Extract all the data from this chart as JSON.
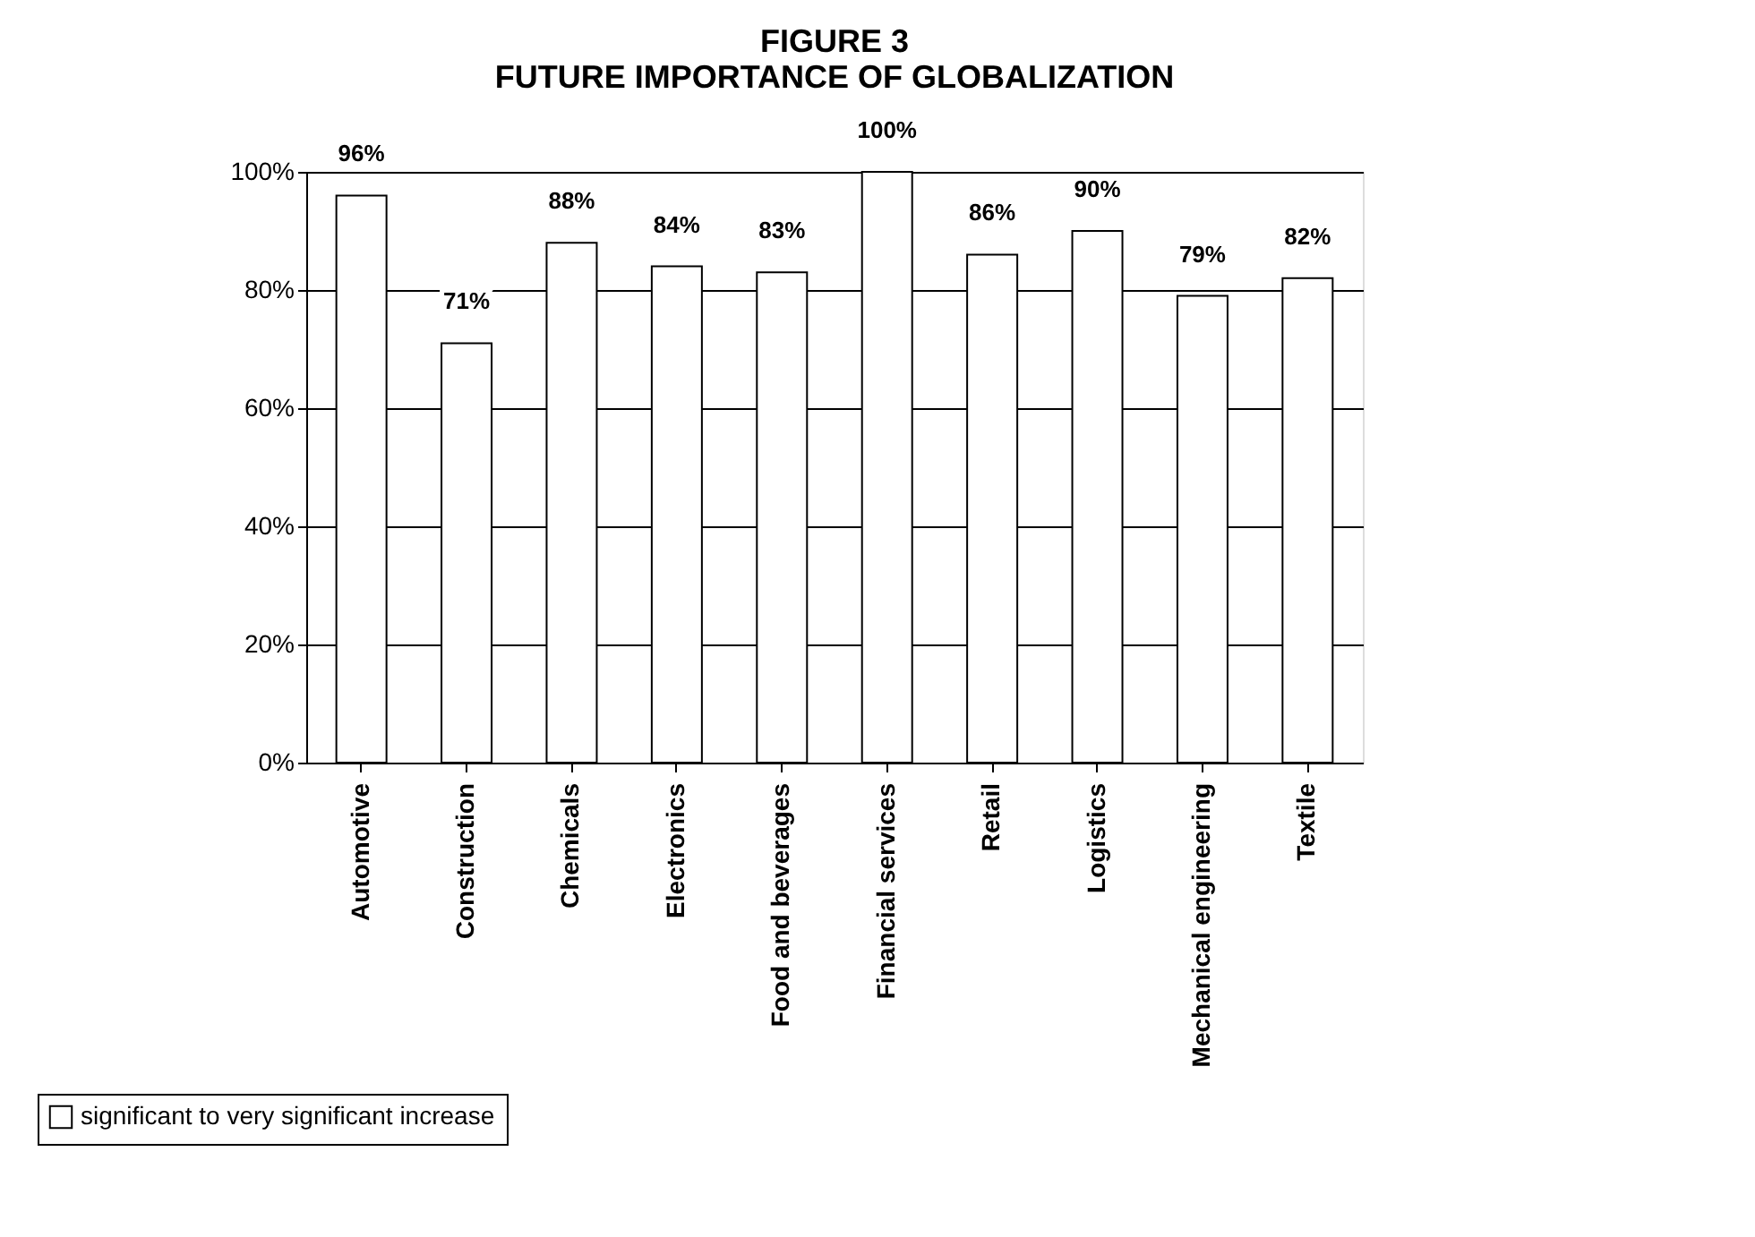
{
  "chart_data": {
    "type": "bar",
    "title": [
      "FIGURE 3",
      "FUTURE IMPORTANCE OF GLOBALIZATION"
    ],
    "categories": [
      "Automotive",
      "Construction",
      "Chemicals",
      "Electronics",
      "Food and beverages",
      "Financial services",
      "Retail",
      "Logistics",
      "Mechanical engineering",
      "Textile"
    ],
    "series": [
      {
        "name": "significant to very significant increase",
        "color": "#ffffff",
        "values": [
          96,
          71,
          88,
          84,
          83,
          100,
          86,
          90,
          79,
          82
        ],
        "value_labels": [
          "96%",
          "71%",
          "88%",
          "84%",
          "83%",
          "100%",
          "86%",
          "90%",
          "79%",
          "82%"
        ]
      }
    ],
    "ylim": [
      0,
      100
    ],
    "yticks": [
      {
        "value": 0,
        "label": "0%"
      },
      {
        "value": 20,
        "label": "20%"
      },
      {
        "value": 40,
        "label": "40%"
      },
      {
        "value": 60,
        "label": "60%"
      },
      {
        "value": 80,
        "label": "80%"
      },
      {
        "value": 100,
        "label": "100%"
      }
    ],
    "grid": "y",
    "legend": "bottom left"
  }
}
